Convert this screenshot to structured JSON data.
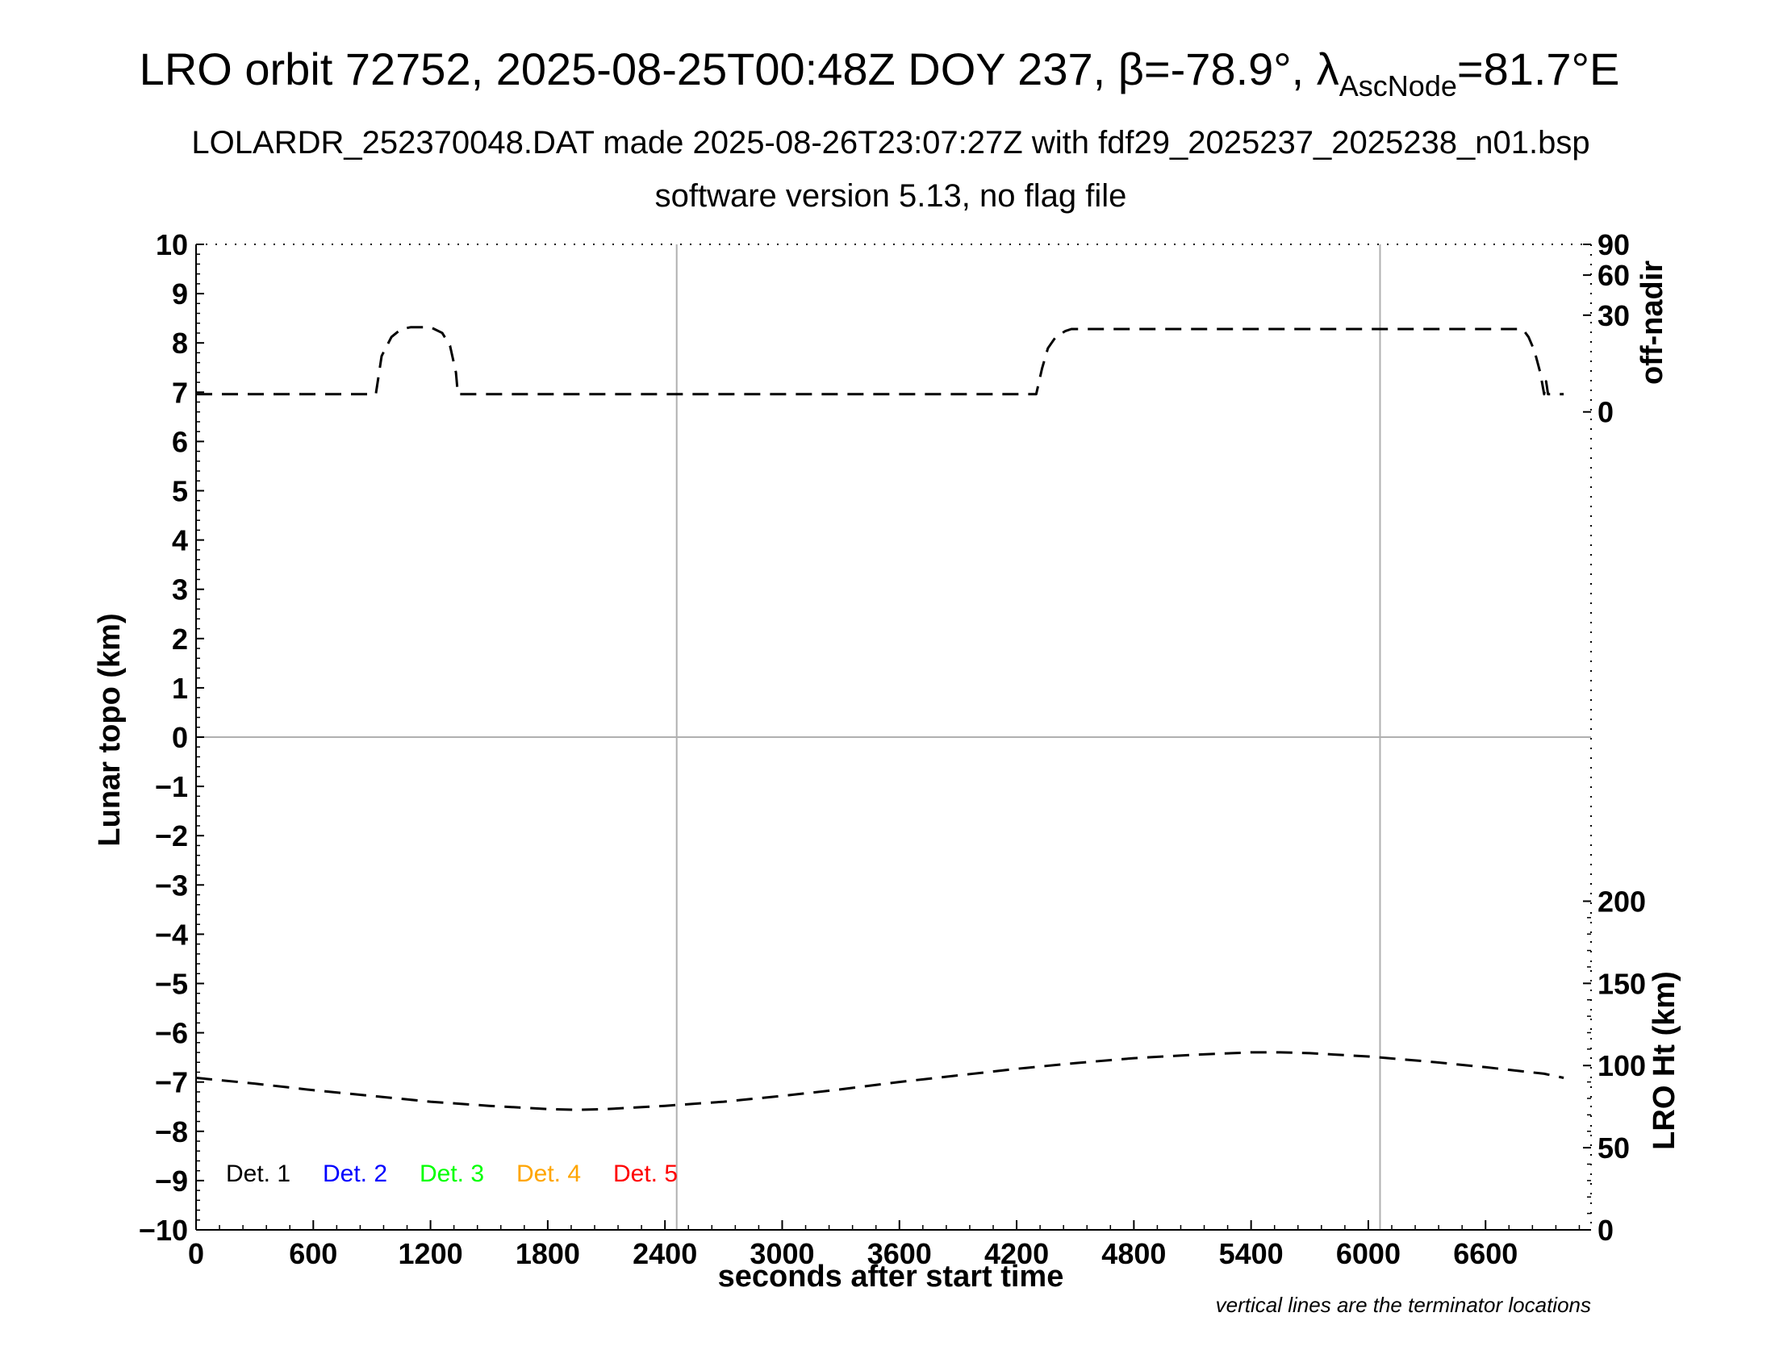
{
  "title": {
    "main": "LRO orbit 72752, 2025-08-25T00:48Z DOY 237, β=-78.9°, λ",
    "main_sub": "AscNode",
    "main_end": "=81.7°E",
    "line2": "LOLARDR_252370048.DAT made 2025-08-26T23:07:27Z with fdf29_2025237_2025238_n01.bsp",
    "line3": "software version 5.13, no flag file"
  },
  "note": "vertical lines are the terminator locations",
  "chart_data": {
    "type": "line",
    "xlabel": "seconds after start time",
    "xlim": [
      0,
      7140
    ],
    "xticks": [
      0,
      600,
      1200,
      1800,
      2400,
      3000,
      3600,
      4200,
      4800,
      5400,
      6000,
      6600
    ],
    "terminators_x": [
      2460,
      6060
    ],
    "grid_x": [
      2460,
      6060
    ],
    "grid_y": [
      0
    ],
    "left_axis": {
      "label": "Lunar topo (km)",
      "range": [
        -10,
        10
      ],
      "ticks": [
        10,
        9,
        8,
        7,
        6,
        5,
        4,
        3,
        2,
        1,
        0,
        -1,
        -2,
        -3,
        -4,
        -5,
        -6,
        -7,
        -8,
        -9,
        -10
      ],
      "tick_labels": [
        "10",
        "9",
        "8",
        "7",
        "6",
        "5",
        "4",
        "3",
        "2",
        "1",
        "0",
        "−1",
        "−2",
        "−3",
        "−4",
        "−5",
        "−6",
        "−7",
        "−8",
        "−9",
        "−10"
      ]
    },
    "right_axis_top": {
      "label": "off-nadir",
      "range": [
        0,
        90
      ],
      "ticks": [
        0,
        30,
        60,
        90
      ],
      "tick_labels": [
        "0",
        "30",
        "60",
        "90"
      ]
    },
    "right_axis_bottom": {
      "label": "LRO Ht (km)",
      "range": [
        0,
        200
      ],
      "ticks": [
        0,
        50,
        100,
        150,
        200
      ],
      "tick_labels": [
        "0",
        "50",
        "100",
        "150",
        "200"
      ]
    },
    "legend": [
      "Det. 1",
      "Det. 2",
      "Det. 3",
      "Det. 4",
      "Det. 5"
    ],
    "legend_colors": [
      "#000000",
      "#0000ff",
      "#00ff00",
      "#ffa500",
      "#ff0000"
    ],
    "series": [
      {
        "name": "off-nadir",
        "axis": "right_top",
        "x": [
          0,
          920,
          950,
          1000,
          1050,
          1100,
          1200,
          1260,
          1300,
          1330,
          1340,
          1400,
          2400,
          3600,
          4300,
          4330,
          4360,
          4400,
          4450,
          4480,
          4600,
          5400,
          6000,
          6600,
          6790,
          6820,
          6850,
          6880,
          6900,
          6910,
          6920,
          7000
        ],
        "y": [
          1,
          1,
          10,
          18,
          22,
          23,
          23,
          20,
          14,
          5,
          1,
          1,
          1,
          1,
          1,
          6,
          13,
          18,
          21,
          22,
          22,
          22,
          22,
          22,
          22,
          18,
          12,
          5,
          1,
          3,
          1,
          1
        ]
      },
      {
        "name": "LRO Ht",
        "axis": "right_bottom",
        "x": [
          0,
          300,
          600,
          900,
          1200,
          1500,
          1800,
          1950,
          2100,
          2400,
          2700,
          3000,
          3300,
          3600,
          3900,
          4200,
          4500,
          4800,
          5100,
          5400,
          5550,
          5700,
          6000,
          6300,
          6600,
          6900,
          7000
        ],
        "y": [
          92.5,
          89,
          85,
          81.5,
          78,
          75.5,
          73.5,
          73,
          73.5,
          75.5,
          78,
          81.5,
          85.5,
          90,
          94,
          98,
          101.5,
          104.5,
          106.5,
          108,
          108,
          107.5,
          105.5,
          102.5,
          99,
          95,
          92.5
        ]
      }
    ]
  }
}
